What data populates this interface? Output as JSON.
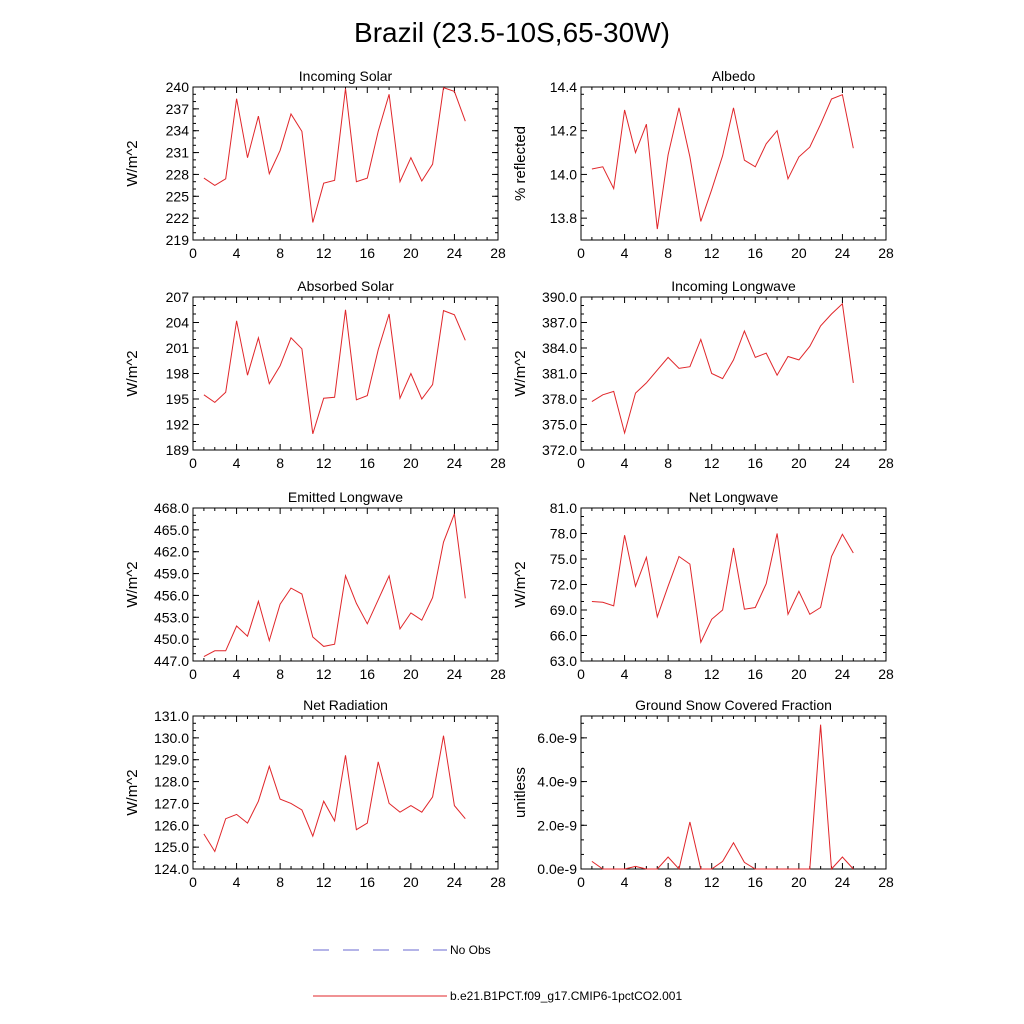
{
  "title": "Brazil (23.5-10S,65-30W)",
  "colors": {
    "model_line": "#e0262a",
    "obs_line": "#6a6ad0",
    "axis": "#000000"
  },
  "legend": {
    "obs_label": "No Obs",
    "model_label": "b.e21.B1PCT.f09_g17.CMIP6-1pctCO2.001"
  },
  "chart_data": [
    {
      "type": "line",
      "title": "Incoming Solar",
      "ylabel": "W/m^2",
      "xlim": [
        0,
        28
      ],
      "xticks": [
        "0",
        "4",
        "8",
        "12",
        "16",
        "20",
        "24",
        "28"
      ],
      "ylim": [
        219,
        240
      ],
      "yticks": [
        "219",
        "222",
        "225",
        "228",
        "231",
        "234",
        "237",
        "240"
      ],
      "x": [
        1,
        2,
        3,
        4,
        5,
        6,
        7,
        8,
        9,
        10,
        11,
        12,
        13,
        14,
        15,
        16,
        17,
        18,
        19,
        20,
        21,
        22,
        23,
        24,
        25
      ],
      "y": [
        227.5,
        226.5,
        227.4,
        238.4,
        230.3,
        236.0,
        228.1,
        231.3,
        236.3,
        233.9,
        221.4,
        226.8,
        227.2,
        239.8,
        227.0,
        227.5,
        233.9,
        239.0,
        227.0,
        230.3,
        227.1,
        229.4,
        239.9,
        239.4,
        235.3
      ]
    },
    {
      "type": "line",
      "title": "Albedo",
      "ylabel": "% reflected",
      "xlim": [
        0,
        28
      ],
      "xticks": [
        "0",
        "4",
        "8",
        "12",
        "16",
        "20",
        "24",
        "28"
      ],
      "ylim": [
        13.7,
        14.4
      ],
      "yticks": [
        "13.8",
        "14.0",
        "14.2",
        "14.4"
      ],
      "ytick_values": [
        13.8,
        14.0,
        14.2,
        14.4
      ],
      "x": [
        1,
        2,
        3,
        4,
        5,
        6,
        7,
        8,
        9,
        10,
        11,
        12,
        13,
        14,
        15,
        16,
        17,
        18,
        19,
        20,
        21,
        22,
        23,
        24,
        25
      ],
      "y": [
        14.025,
        14.035,
        13.935,
        14.295,
        14.1,
        14.23,
        13.75,
        14.09,
        14.305,
        14.08,
        13.785,
        13.93,
        14.085,
        14.305,
        14.065,
        14.035,
        14.14,
        14.2,
        13.98,
        14.08,
        14.125,
        14.23,
        14.345,
        14.365,
        14.12
      ]
    },
    {
      "type": "line",
      "title": "Absorbed Solar",
      "ylabel": "W/m^2",
      "xlim": [
        0,
        28
      ],
      "xticks": [
        "0",
        "4",
        "8",
        "12",
        "16",
        "20",
        "24",
        "28"
      ],
      "ylim": [
        189,
        207
      ],
      "yticks": [
        "189",
        "192",
        "195",
        "198",
        "201",
        "204",
        "207"
      ],
      "x": [
        1,
        2,
        3,
        4,
        5,
        6,
        7,
        8,
        9,
        10,
        11,
        12,
        13,
        14,
        15,
        16,
        17,
        18,
        19,
        20,
        21,
        22,
        23,
        24,
        25
      ],
      "y": [
        195.5,
        194.6,
        195.8,
        204.2,
        197.8,
        202.2,
        196.8,
        198.9,
        202.2,
        200.9,
        190.9,
        195.1,
        195.2,
        205.5,
        194.9,
        195.4,
        200.8,
        205.0,
        195.1,
        198.0,
        195.0,
        196.7,
        205.4,
        204.9,
        201.9
      ]
    },
    {
      "type": "line",
      "title": "Incoming Longwave",
      "ylabel": "W/m^2",
      "xlim": [
        0,
        28
      ],
      "xticks": [
        "0",
        "4",
        "8",
        "12",
        "16",
        "20",
        "24",
        "28"
      ],
      "ylim": [
        372,
        390
      ],
      "yticks": [
        "372.0",
        "375.0",
        "378.0",
        "381.0",
        "384.0",
        "387.0",
        "390.0"
      ],
      "x": [
        1,
        2,
        3,
        4,
        5,
        6,
        7,
        8,
        9,
        10,
        11,
        12,
        13,
        14,
        15,
        16,
        17,
        18,
        19,
        20,
        21,
        22,
        23,
        24,
        25
      ],
      "y": [
        377.7,
        378.5,
        378.9,
        374.0,
        378.7,
        379.9,
        381.4,
        382.9,
        381.6,
        381.8,
        385.0,
        381.0,
        380.4,
        382.6,
        386.0,
        382.9,
        383.4,
        380.8,
        383.0,
        382.6,
        384.2,
        386.6,
        388.0,
        389.2,
        379.9
      ]
    },
    {
      "type": "line",
      "title": "Emitted Longwave",
      "ylabel": "W/m^2",
      "xlim": [
        0,
        28
      ],
      "xticks": [
        "0",
        "4",
        "8",
        "12",
        "16",
        "20",
        "24",
        "28"
      ],
      "ylim": [
        447,
        468
      ],
      "yticks": [
        "447.0",
        "450.0",
        "453.0",
        "456.0",
        "459.0",
        "462.0",
        "465.0",
        "468.0"
      ],
      "x": [
        1,
        2,
        3,
        4,
        5,
        6,
        7,
        8,
        9,
        10,
        11,
        12,
        13,
        14,
        15,
        16,
        17,
        18,
        19,
        20,
        21,
        22,
        23,
        24,
        25
      ],
      "y": [
        447.6,
        448.4,
        448.4,
        451.8,
        450.4,
        455.2,
        449.8,
        454.8,
        457.0,
        456.2,
        450.3,
        449.0,
        449.3,
        458.7,
        454.9,
        452.1,
        455.4,
        458.7,
        451.4,
        453.6,
        452.6,
        455.7,
        463.3,
        467.2,
        455.6
      ]
    },
    {
      "type": "line",
      "title": "Net Longwave",
      "ylabel": "W/m^2",
      "xlim": [
        0,
        28
      ],
      "xticks": [
        "0",
        "4",
        "8",
        "12",
        "16",
        "20",
        "24",
        "28"
      ],
      "ylim": [
        63,
        81
      ],
      "yticks": [
        "63.0",
        "66.0",
        "69.0",
        "72.0",
        "75.0",
        "78.0",
        "81.0"
      ],
      "x": [
        1,
        2,
        3,
        4,
        5,
        6,
        7,
        8,
        9,
        10,
        11,
        12,
        13,
        14,
        15,
        16,
        17,
        18,
        19,
        20,
        21,
        22,
        23,
        24,
        25
      ],
      "y": [
        70.0,
        69.9,
        69.5,
        77.8,
        71.8,
        75.2,
        68.2,
        71.8,
        75.3,
        74.4,
        65.2,
        67.9,
        69.0,
        76.3,
        69.1,
        69.3,
        72.1,
        78.0,
        68.5,
        71.2,
        68.5,
        69.3,
        75.3,
        77.9,
        75.7
      ]
    },
    {
      "type": "line",
      "title": "Net Radiation",
      "ylabel": "W/m^2",
      "xlim": [
        0,
        28
      ],
      "xticks": [
        "0",
        "4",
        "8",
        "12",
        "16",
        "20",
        "24",
        "28"
      ],
      "ylim": [
        124,
        131
      ],
      "yticks": [
        "124.0",
        "125.0",
        "126.0",
        "127.0",
        "128.0",
        "129.0",
        "130.0",
        "131.0"
      ],
      "x": [
        1,
        2,
        3,
        4,
        5,
        6,
        7,
        8,
        9,
        10,
        11,
        12,
        13,
        14,
        15,
        16,
        17,
        18,
        19,
        20,
        21,
        22,
        23,
        24,
        25
      ],
      "y": [
        125.6,
        124.8,
        126.3,
        126.5,
        126.1,
        127.1,
        128.7,
        127.2,
        127.0,
        126.7,
        125.5,
        127.1,
        126.2,
        129.2,
        125.8,
        126.1,
        128.9,
        127.0,
        126.6,
        126.9,
        126.6,
        127.3,
        130.1,
        126.9,
        126.3
      ]
    },
    {
      "type": "line",
      "title": "Ground Snow Covered Fraction",
      "ylabel": "unitless",
      "xlim": [
        0,
        28
      ],
      "xticks": [
        "0",
        "4",
        "8",
        "12",
        "16",
        "20",
        "24",
        "28"
      ],
      "ylim": [
        0,
        7e-09
      ],
      "yticks": [
        "0.0e-9",
        "2.0e-9",
        "4.0e-9",
        "6.0e-9"
      ],
      "ytick_values": [
        0,
        2e-09,
        4e-09,
        6e-09
      ],
      "x": [
        1,
        2,
        3,
        4,
        5,
        6,
        7,
        8,
        9,
        10,
        11,
        12,
        13,
        14,
        15,
        16,
        17,
        18,
        19,
        20,
        21,
        22,
        23,
        24,
        25
      ],
      "y": [
        3.5e-10,
        0,
        0,
        0,
        1.2e-10,
        0,
        0,
        5.5e-10,
        0,
        2.15e-09,
        0,
        0,
        3.5e-10,
        1.2e-09,
        3e-10,
        0,
        0,
        0,
        0,
        0,
        0,
        6.6e-09,
        0,
        5.5e-10,
        0
      ]
    }
  ]
}
